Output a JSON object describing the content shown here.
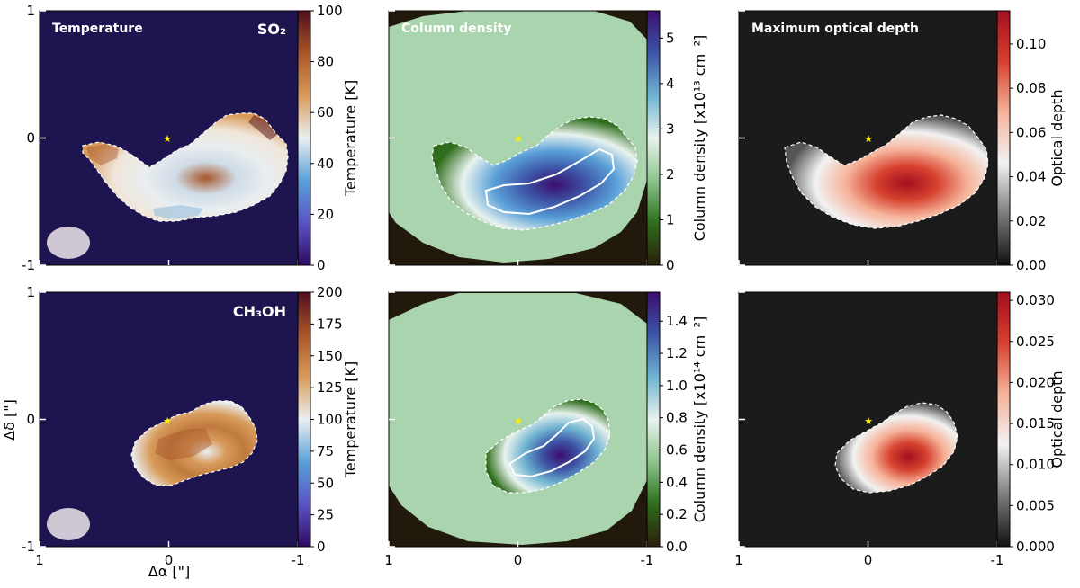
{
  "figure": {
    "axis_labels": {
      "xlabel": "Δα [\"]",
      "ylabel": "Δδ [\"]"
    },
    "offset_ticks": [
      {
        "value": 1,
        "label": "1"
      },
      {
        "value": 0,
        "label": "0"
      },
      {
        "value": -1,
        "label": "-1"
      }
    ],
    "colors": {
      "temp_bg": "#1e1450",
      "coldens_bg": "#a9d4ae",
      "coldens_edge": "#211a0c",
      "tau_bg": "#1b1b1b",
      "contour": "#ffffff",
      "star": "#ffee00",
      "beam": "#cfc7d3"
    }
  },
  "chart_data": [
    {
      "id": "so2-temperature",
      "type": "heatmap",
      "title": "Temperature",
      "molecule_label": "SO₂",
      "colorbar_label": "Temperature [K]",
      "colorbar_range": [
        0,
        100
      ],
      "colorbar_ticks": [
        "0",
        "20",
        "40",
        "60",
        "80",
        "100"
      ],
      "xlim": [
        1,
        -1
      ],
      "ylim": [
        -1,
        1
      ],
      "colormap": [
        "#2d0a5e",
        "#5b54c4",
        "#5aa0d8",
        "#e9eef0",
        "#d89b5b",
        "#a8562a",
        "#4e0d1c"
      ]
    },
    {
      "id": "so2-column-density",
      "type": "heatmap",
      "title": "Column density",
      "colorbar_label": "Column density [x10¹³ cm⁻²]",
      "colorbar_range": [
        0,
        5.6
      ],
      "colorbar_ticks": [
        "0",
        "1",
        "2",
        "3",
        "4",
        "5"
      ],
      "xlim": [
        1,
        -1
      ],
      "ylim": [
        -1,
        1
      ],
      "colormap": [
        "#2a1e0c",
        "#2f6d1c",
        "#8cc48c",
        "#e8f3ee",
        "#6fb3d1",
        "#3d55a6",
        "#3b0e6e"
      ]
    },
    {
      "id": "so2-optical-depth",
      "type": "heatmap",
      "title": "Maximum optical depth",
      "colorbar_label": "Optical depth",
      "colorbar_range": [
        0,
        0.115
      ],
      "colorbar_ticks": [
        "0.00",
        "0.02",
        "0.04",
        "0.06",
        "0.08",
        "0.10"
      ],
      "xlim": [
        1,
        -1
      ],
      "ylim": [
        -1,
        1
      ],
      "colormap": [
        "#111111",
        "#7a7a7a",
        "#f2f2f2",
        "#f6b39a",
        "#d6412e",
        "#a30f1e"
      ]
    },
    {
      "id": "ch3oh-temperature",
      "type": "heatmap",
      "title": "",
      "molecule_label": "CH₃OH",
      "colorbar_label": "Temperature [K]",
      "colorbar_range": [
        0,
        200
      ],
      "colorbar_ticks": [
        "0",
        "25",
        "50",
        "75",
        "100",
        "125",
        "150",
        "175",
        "200"
      ],
      "xlim": [
        1,
        -1
      ],
      "ylim": [
        -1,
        1
      ],
      "colormap": [
        "#2d0a5e",
        "#5b54c4",
        "#5aa0d8",
        "#e9eef0",
        "#d89b5b",
        "#a8562a",
        "#4e0d1c"
      ]
    },
    {
      "id": "ch3oh-column-density",
      "type": "heatmap",
      "title": "",
      "colorbar_label": "Column density [x10¹⁴ cm⁻²]",
      "colorbar_range": [
        0,
        1.58
      ],
      "colorbar_ticks": [
        "0.0",
        "0.2",
        "0.4",
        "0.6",
        "0.8",
        "1.0",
        "1.2",
        "1.4"
      ],
      "xlim": [
        1,
        -1
      ],
      "ylim": [
        -1,
        1
      ],
      "colormap": [
        "#2a1e0c",
        "#2f6d1c",
        "#8cc48c",
        "#e8f3ee",
        "#6fb3d1",
        "#3d55a6",
        "#3b0e6e"
      ]
    },
    {
      "id": "ch3oh-optical-depth",
      "type": "heatmap",
      "title": "",
      "colorbar_label": "Optical depth",
      "colorbar_range": [
        0,
        0.031
      ],
      "colorbar_ticks": [
        "0.000",
        "0.005",
        "0.010",
        "0.015",
        "0.020",
        "0.025",
        "0.030"
      ],
      "xlim": [
        1,
        -1
      ],
      "ylim": [
        -1,
        1
      ],
      "colormap": [
        "#111111",
        "#7a7a7a",
        "#f2f2f2",
        "#f6b39a",
        "#d6412e",
        "#a30f1e"
      ]
    }
  ]
}
